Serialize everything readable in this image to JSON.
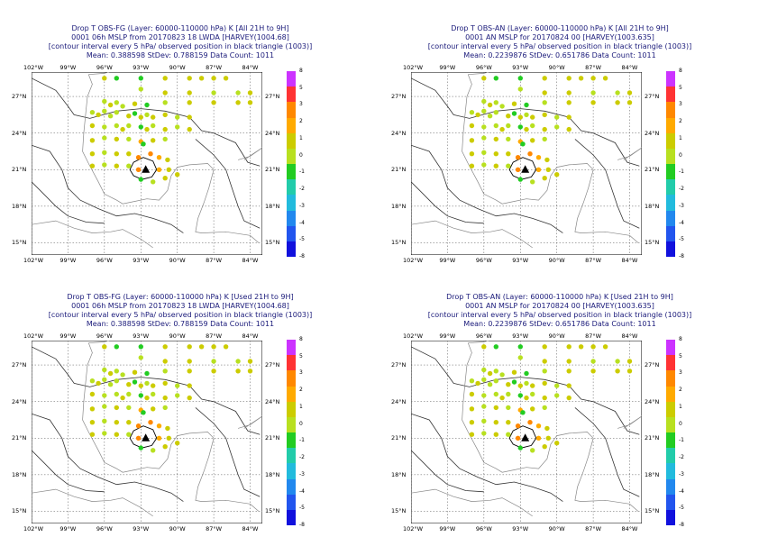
{
  "panels": [
    {
      "title_line1": "Drop T OBS-FG (Layer: 60000-110000 hPa) K [All 21H to 9H]",
      "title_line2": "0001 06h MSLP from 20170823 18 LWDA [HARVEY(1004.68]",
      "title_line3": "[contour interval every 5 hPa/ observed position in black triangle (1003)]",
      "title_line4": "Mean: 0.388598 StDev: 0.788159 Data Count: 1011"
    },
    {
      "title_line1": "Drop T OBS-AN (Layer: 60000-110000 hPa) K [All 21H to 9H]",
      "title_line2": "0001 AN MSLP for 20170824 00 [HARVEY(1003.635]",
      "title_line3": "[contour interval every 5 hPa/ observed position in black triangle (1003)]",
      "title_line4": "Mean: 0.2239876 StDev: 0.651786 Data Count: 1011"
    },
    {
      "title_line1": "Drop T OBS-FG (Layer: 60000-110000 hPa) K [Used 21H to 9H]",
      "title_line2": "0001 06h MSLP from 20170823 18 LWDA [HARVEY(1004.68]",
      "title_line3": "[contour interval every 5 hPa/ observed position in black triangle (1003)]",
      "title_line4": "Mean: 0.388598 StDev: 0.788159 Data Count: 1011"
    },
    {
      "title_line1": "Drop T OBS-AN (Layer: 60000-110000 hPa) K [Used 21H to 9H]",
      "title_line2": "0001 AN MSLP for 20170824 00 [HARVEY(1003.635]",
      "title_line3": "[contour interval every 5 hPa/ observed position in black triangle (1003)]",
      "title_line4": "Mean: 0.2239876 StDev: 0.651786 Data Count: 1011"
    }
  ],
  "lon_labels": [
    "102°W",
    "99°W",
    "96°W",
    "93°W",
    "90°W",
    "87°W",
    "84°W"
  ],
  "lat_labels": [
    "27°N",
    "24°N",
    "21°N",
    "18°N",
    "15°N"
  ],
  "colorbar_labels": [
    "8",
    "5",
    "3",
    "2",
    "1",
    "0",
    "-1",
    "-2",
    "-3",
    "-4",
    "-5",
    "-8"
  ],
  "colorbar_colors": [
    "#cc33ff",
    "#ff3333",
    "#ff8800",
    "#ffaa00",
    "#cccc00",
    "#b8e020",
    "#22cc22",
    "#22ccaa",
    "#22bbdd",
    "#2288ee",
    "#2255ee",
    "#1111dd"
  ],
  "chart_data": {
    "type": "scatter",
    "xlim": [
      -102,
      -83
    ],
    "ylim": [
      14,
      29
    ],
    "storm_position": {
      "lon": -92.6,
      "lat": 21.0,
      "marker": "black triangle"
    },
    "observations": [
      {
        "lon": -96,
        "lat": 28.5,
        "v": 1.0
      },
      {
        "lon": -95,
        "lat": 28.5,
        "v": 0.2
      },
      {
        "lon": -93,
        "lat": 28.5,
        "v": 0.2
      },
      {
        "lon": -91,
        "lat": 28.5,
        "v": 1.0
      },
      {
        "lon": -89,
        "lat": 28.5,
        "v": 1.0
      },
      {
        "lon": -88,
        "lat": 28.5,
        "v": 1.0
      },
      {
        "lon": -87,
        "lat": 28.5,
        "v": 1.0
      },
      {
        "lon": -86,
        "lat": 28.5,
        "v": 1.0
      },
      {
        "lon": -93,
        "lat": 27.6,
        "v": 0.5
      },
      {
        "lon": -91,
        "lat": 27.3,
        "v": 1.0
      },
      {
        "lon": -89,
        "lat": 27.3,
        "v": 1.0
      },
      {
        "lon": -87,
        "lat": 27.3,
        "v": 0.5
      },
      {
        "lon": -85,
        "lat": 27.3,
        "v": 0.5
      },
      {
        "lon": -84,
        "lat": 27.3,
        "v": 1.0
      },
      {
        "lon": -96,
        "lat": 26.6,
        "v": 0.5
      },
      {
        "lon": -95.5,
        "lat": 26.3,
        "v": 1.0
      },
      {
        "lon": -95,
        "lat": 26.5,
        "v": 0.5
      },
      {
        "lon": -94.5,
        "lat": 26.2,
        "v": 0.5
      },
      {
        "lon": -93.5,
        "lat": 26.4,
        "v": 1.0
      },
      {
        "lon": -92.5,
        "lat": 26.3,
        "v": 0.2
      },
      {
        "lon": -91,
        "lat": 26.5,
        "v": 0.5
      },
      {
        "lon": -89,
        "lat": 26.5,
        "v": 1.0
      },
      {
        "lon": -87,
        "lat": 26.5,
        "v": 1.0
      },
      {
        "lon": -85,
        "lat": 26.5,
        "v": 1.0
      },
      {
        "lon": -84,
        "lat": 26.5,
        "v": 1.0
      },
      {
        "lon": -97,
        "lat": 25.7,
        "v": 0.5
      },
      {
        "lon": -96.5,
        "lat": 25.5,
        "v": 1.0
      },
      {
        "lon": -96,
        "lat": 25.8,
        "v": 0.5
      },
      {
        "lon": -95.5,
        "lat": 25.4,
        "v": 0.5
      },
      {
        "lon": -95,
        "lat": 25.7,
        "v": 0.5
      },
      {
        "lon": -94,
        "lat": 25.4,
        "v": 1.0
      },
      {
        "lon": -93.5,
        "lat": 25.6,
        "v": 0.2
      },
      {
        "lon": -93,
        "lat": 25.3,
        "v": 1.0
      },
      {
        "lon": -92.5,
        "lat": 25.5,
        "v": 0.5
      },
      {
        "lon": -92,
        "lat": 25.3,
        "v": 1.0
      },
      {
        "lon": -91,
        "lat": 25.5,
        "v": 1.0
      },
      {
        "lon": -90,
        "lat": 25.3,
        "v": 0.5
      },
      {
        "lon": -89,
        "lat": 25.3,
        "v": 1.0
      },
      {
        "lon": -97,
        "lat": 24.6,
        "v": 1.0
      },
      {
        "lon": -96,
        "lat": 24.5,
        "v": 0.5
      },
      {
        "lon": -95,
        "lat": 24.6,
        "v": 0.5
      },
      {
        "lon": -94.5,
        "lat": 24.3,
        "v": 1.0
      },
      {
        "lon": -94,
        "lat": 24.6,
        "v": 0.5
      },
      {
        "lon": -93,
        "lat": 24.5,
        "v": 0.2
      },
      {
        "lon": -92.5,
        "lat": 24.3,
        "v": 1.0
      },
      {
        "lon": -92,
        "lat": 24.6,
        "v": 0.5
      },
      {
        "lon": -91,
        "lat": 24.3,
        "v": 1.0
      },
      {
        "lon": -90,
        "lat": 24.5,
        "v": 0.5
      },
      {
        "lon": -89,
        "lat": 24.3,
        "v": 1.0
      },
      {
        "lon": -97,
        "lat": 23.4,
        "v": 1.0
      },
      {
        "lon": -96,
        "lat": 23.6,
        "v": 0.5
      },
      {
        "lon": -95,
        "lat": 23.5,
        "v": 1.0
      },
      {
        "lon": -94,
        "lat": 23.5,
        "v": 0.5
      },
      {
        "lon": -93,
        "lat": 23.3,
        "v": 2.0
      },
      {
        "lon": -92.8,
        "lat": 23.1,
        "v": 0.2
      },
      {
        "lon": -92,
        "lat": 23.4,
        "v": 1.0
      },
      {
        "lon": -91,
        "lat": 23.5,
        "v": 0.5
      },
      {
        "lon": -97,
        "lat": 22.3,
        "v": 1.0
      },
      {
        "lon": -96,
        "lat": 22.4,
        "v": 0.5
      },
      {
        "lon": -95,
        "lat": 22.3,
        "v": 1.0
      },
      {
        "lon": -94,
        "lat": 22.3,
        "v": 1.0
      },
      {
        "lon": -93.2,
        "lat": 22.0,
        "v": 2.5
      },
      {
        "lon": -92.2,
        "lat": 22.3,
        "v": 2.5
      },
      {
        "lon": -91.5,
        "lat": 22.0,
        "v": 2.0
      },
      {
        "lon": -90.8,
        "lat": 21.8,
        "v": 1.0
      },
      {
        "lon": -97,
        "lat": 21.3,
        "v": 1.0
      },
      {
        "lon": -96,
        "lat": 21.4,
        "v": 0.5
      },
      {
        "lon": -95,
        "lat": 21.3,
        "v": 1.0
      },
      {
        "lon": -94,
        "lat": 21.3,
        "v": 0.5
      },
      {
        "lon": -93.2,
        "lat": 21.0,
        "v": 2.5
      },
      {
        "lon": -91.5,
        "lat": 21.0,
        "v": 2.0
      },
      {
        "lon": -90.7,
        "lat": 21.0,
        "v": 1.5
      },
      {
        "lon": -93,
        "lat": 20.2,
        "v": 0.2
      },
      {
        "lon": -92,
        "lat": 20.0,
        "v": 0.5
      },
      {
        "lon": -91,
        "lat": 20.3,
        "v": 1.0
      },
      {
        "lon": -90,
        "lat": 20.6,
        "v": 1.0
      }
    ]
  }
}
